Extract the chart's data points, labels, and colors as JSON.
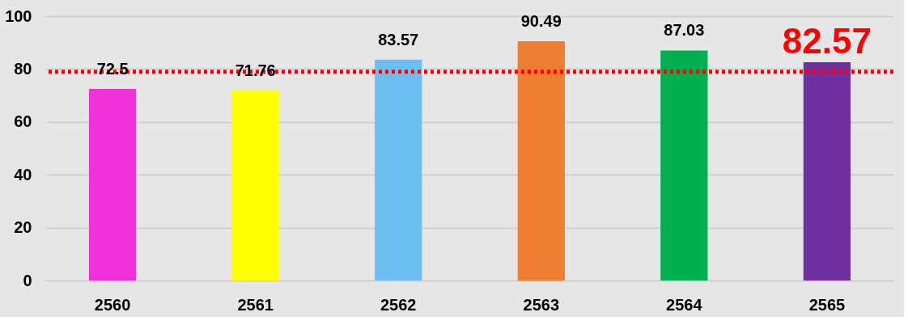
{
  "chart_data": {
    "type": "bar",
    "categories": [
      "2560",
      "2561",
      "2562",
      "2563",
      "2564",
      "2565"
    ],
    "values": [
      72.5,
      71.76,
      83.57,
      90.49,
      87.03,
      82.57
    ],
    "colors": [
      "#f032d8",
      "#ffff00",
      "#6dbff2",
      "#ed7d31",
      "#00b050",
      "#7030a0"
    ],
    "ylim": [
      0,
      100
    ],
    "yticks": [
      0,
      20,
      40,
      60,
      80,
      100
    ],
    "grid": "y",
    "data_labels": true,
    "ref_lines": [
      {
        "axis": "y",
        "value": 79,
        "color": "#ff0000",
        "line_style": "dotted"
      }
    ]
  }
}
